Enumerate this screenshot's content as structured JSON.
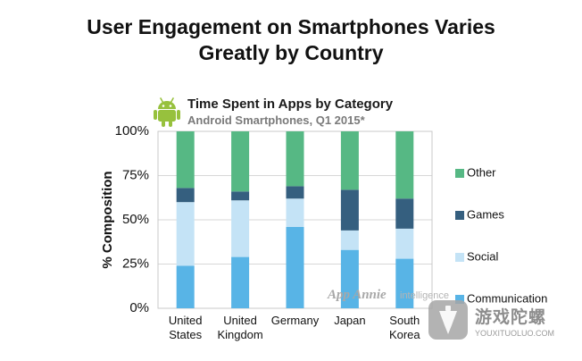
{
  "header": {
    "title_line1": "User Engagement on Smartphones Varies",
    "title_line2": "Greatly by Country"
  },
  "chart_data": {
    "type": "bar",
    "stacked": true,
    "title": "Time Spent in Apps by Category",
    "subtitle": "Android Smartphones, Q1 2015*",
    "ylabel": "% Composition",
    "xlabel": "",
    "ylim": [
      0,
      100
    ],
    "yticks": [
      "0%",
      "25%",
      "50%",
      "75%",
      "100%"
    ],
    "categories": [
      [
        "United",
        "States"
      ],
      [
        "United",
        "Kingdom"
      ],
      [
        "Germany"
      ],
      [
        "Japan"
      ],
      [
        "South",
        "Korea"
      ]
    ],
    "series": [
      {
        "name": "Communication",
        "color": "#58b4e6",
        "values": [
          24,
          29,
          46,
          33,
          28
        ]
      },
      {
        "name": "Social",
        "color": "#c4e3f6",
        "values": [
          36,
          32,
          16,
          11,
          17
        ]
      },
      {
        "name": "Games",
        "color": "#355f7f",
        "values": [
          8,
          5,
          7,
          23,
          17
        ]
      },
      {
        "name": "Other",
        "color": "#56b884",
        "values": [
          32,
          34,
          31,
          33,
          38
        ]
      }
    ],
    "legend_order": [
      "Other",
      "Games",
      "Social",
      "Communication"
    ],
    "legend_position": "right",
    "grid": true
  },
  "watermarks": {
    "appannie": "App Annie",
    "intelligence": "intelligence",
    "site_name": "游戏陀螺",
    "site_domain": "YOUXITUOLUO.COM"
  },
  "colors": {
    "android_green": "#97c13d"
  }
}
